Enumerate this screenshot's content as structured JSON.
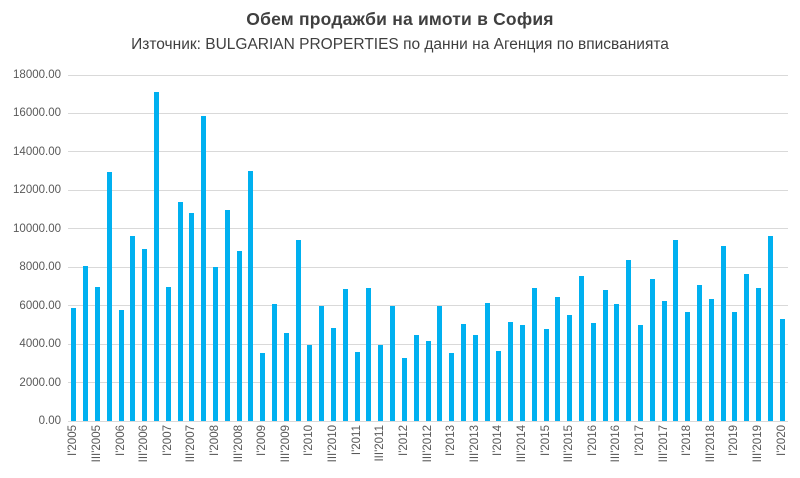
{
  "chart_data": {
    "type": "bar",
    "title": "Обем продажби на имоти в София",
    "subtitle": "Източник: BULGARIAN PROPERTIES по данни на Агенция по вписванията",
    "xlabel": "",
    "ylabel": "",
    "grid": true,
    "legend": false,
    "ylim": [
      0,
      18000
    ],
    "y_tick_step": 2000,
    "y_tick_labels": [
      "0.00",
      "2000.00",
      "4000.00",
      "6000.00",
      "8000.00",
      "10000.00",
      "12000.00",
      "14000.00",
      "16000.00",
      "18000.00"
    ],
    "x_tick_every": 2,
    "x_tick_labels": [
      "I'2005",
      "III'2005",
      "I'2006",
      "III'2006",
      "I'2007",
      "III'2007",
      "I'2008",
      "III'2008",
      "I'2009",
      "III'2009",
      "I'2010",
      "III'2010",
      "I'2011",
      "III'2011",
      "I'2012",
      "III'2012",
      "I'2013",
      "III'2013",
      "I'2014",
      "III'2014",
      "I'2015",
      "III'2015",
      "I'2016",
      "III'2016",
      "I'2017",
      "III'2017",
      "I'2018",
      "III'2018",
      "I'2019",
      "III'2019",
      "I'2020"
    ],
    "categories": [
      "I'2005",
      "II'2005",
      "III'2005",
      "IV'2005",
      "I'2006",
      "II'2006",
      "III'2006",
      "IV'2006",
      "I'2007",
      "II'2007",
      "III'2007",
      "IV'2007",
      "I'2008",
      "II'2008",
      "III'2008",
      "IV'2008",
      "I'2009",
      "II'2009",
      "III'2009",
      "IV'2009",
      "I'2010",
      "II'2010",
      "III'2010",
      "IV'2010",
      "I'2011",
      "II'2011",
      "III'2011",
      "IV'2011",
      "I'2012",
      "II'2012",
      "III'2012",
      "IV'2012",
      "I'2013",
      "II'2013",
      "III'2013",
      "IV'2013",
      "I'2014",
      "II'2014",
      "III'2014",
      "IV'2014",
      "I'2015",
      "II'2015",
      "III'2015",
      "IV'2015",
      "I'2016",
      "II'2016",
      "III'2016",
      "IV'2016",
      "I'2017",
      "II'2017",
      "III'2017",
      "IV'2017",
      "I'2018",
      "II'2018",
      "III'2018",
      "IV'2018",
      "I'2019",
      "II'2019",
      "III'2019",
      "IV'2019",
      "I'2020"
    ],
    "values": [
      5900,
      8050,
      6950,
      12950,
      5800,
      9600,
      8950,
      17100,
      6950,
      11400,
      10800,
      15850,
      8000,
      11000,
      8850,
      13000,
      3550,
      6100,
      4600,
      9400,
      3950,
      6000,
      4850,
      6850,
      3600,
      6900,
      3950,
      6000,
      3300,
      4500,
      4150,
      6000,
      3550,
      5050,
      4450,
      6150,
      3650,
      5150,
      5000,
      6900,
      4800,
      6450,
      5500,
      7550,
      5100,
      6800,
      6100,
      8400,
      5000,
      7400,
      6250,
      9400,
      5650,
      7100,
      6350,
      9100,
      5650,
      7650,
      6900,
      9600,
      5300
    ],
    "colors": {
      "bar": "#00b0f0",
      "grid": "#d9d9d9",
      "tick_text": "#595959",
      "title_text": "#3f3f3f"
    }
  }
}
